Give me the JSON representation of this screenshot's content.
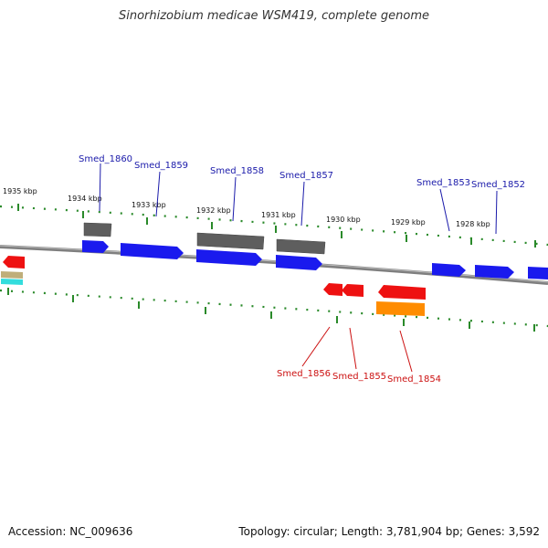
{
  "title": "Sinorhizobium medicae WSM419, complete genome",
  "accession": "Accession: NC_009636",
  "topology": "Topology: circular; Length: 3,781,904 bp; Genes: 3,592",
  "colors": {
    "forward_cds": "#1a1aee",
    "reverse_cds": "#ee1111",
    "gray_feature": "#666666",
    "orange_feature": "#ff8c00",
    "cyan_feature": "#33dddd",
    "tan_feature": "#bfae7a",
    "tick": "#2a8a2a",
    "backbone": "#7f7f7f",
    "forward_label": "#1a1aaa",
    "reverse_label": "#cc1111"
  },
  "scale": {
    "unit": "kbp",
    "labels": [
      "1935 kbp",
      "1934 kbp",
      "1933 kbp",
      "1932 kbp",
      "1931 kbp",
      "1930 kbp",
      "1929 kbp",
      "1928 kbp"
    ]
  },
  "genes": {
    "forward": [
      "Smed_1860",
      "Smed_1859",
      "Smed_1858",
      "Smed_1857",
      "Smed_1853",
      "Smed_1852"
    ],
    "reverse": [
      "Smed_1856",
      "Smed_1855",
      "Smed_1854"
    ]
  }
}
